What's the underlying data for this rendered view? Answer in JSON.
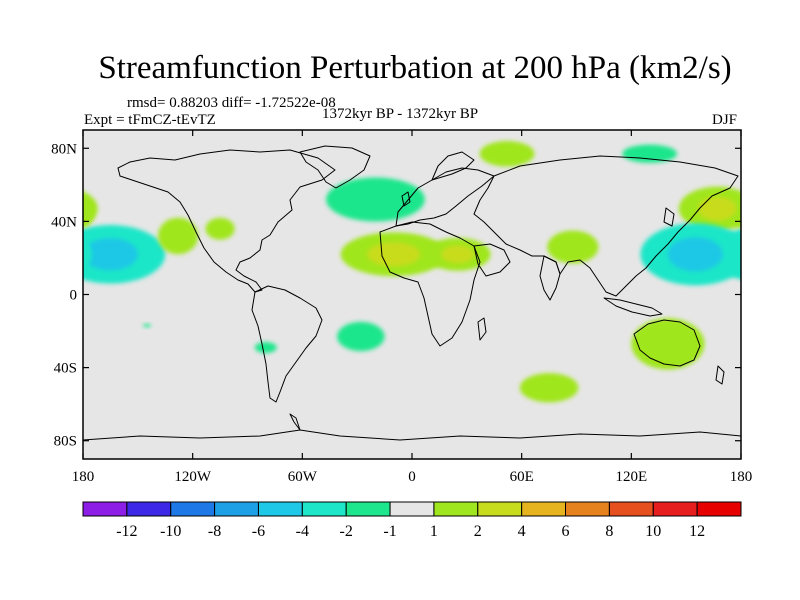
{
  "chart_data": {
    "type": "heatmap",
    "title": "Streamfunction Perturbation at 200 hPa (km2/s)",
    "stats_label": "rmsd= 0.88203 diff= -1.72522e-08",
    "experiment_label": "Expt = tFmCZ-tEvTZ",
    "period_label": "1372kyr BP - 1372kyr BP",
    "season_label": "DJF",
    "x_axis": {
      "range": [
        -180,
        180
      ],
      "ticks": [
        -180,
        -120,
        -60,
        0,
        60,
        120,
        180
      ],
      "tick_labels": [
        "180",
        "120W",
        "60W",
        "0",
        "60E",
        "120E",
        "180"
      ]
    },
    "y_axis": {
      "range": [
        -90,
        90
      ],
      "ticks": [
        80,
        40,
        0,
        -40,
        -80
      ],
      "tick_labels": [
        "80N",
        "40N",
        "0",
        "40S",
        "80S"
      ]
    },
    "colorbar": {
      "levels": [
        -12,
        -10,
        -8,
        -6,
        -4,
        -2,
        -1,
        1,
        2,
        4,
        6,
        8,
        10,
        12
      ],
      "labels": [
        "-12",
        "-10",
        "-8",
        "-6",
        "-4",
        "-2",
        "-1",
        "1",
        "2",
        "4",
        "6",
        "8",
        "10",
        "12"
      ],
      "colors": [
        "#8c1ee6",
        "#3c28e6",
        "#1e78e6",
        "#1ea0e6",
        "#1ec8e6",
        "#1ee6c8",
        "#1ee68c",
        "#e6e6e6",
        "#a0e61e",
        "#c8dc1e",
        "#e6b41e",
        "#e6821e",
        "#e6501e",
        "#e61e1e",
        "#e60000"
      ]
    },
    "anomalies": [
      {
        "lon": -165,
        "lat": 22,
        "rx": 30,
        "ry": 16,
        "value": -3,
        "core": -4.5
      },
      {
        "lon": -180,
        "lat": 45,
        "rx": 6,
        "ry": 8,
        "value": 1.5
      },
      {
        "lon": -128,
        "lat": 32,
        "rx": 11,
        "ry": 10,
        "value": 1.5
      },
      {
        "lon": -105,
        "lat": 36,
        "rx": 8,
        "ry": 6,
        "value": 1.5
      },
      {
        "lon": -20,
        "lat": 52,
        "rx": 27,
        "ry": 12,
        "value": -1.5
      },
      {
        "lon": 52,
        "lat": 77,
        "rx": 15,
        "ry": 7,
        "value": 1.5
      },
      {
        "lon": 130,
        "lat": 77,
        "rx": 15,
        "ry": 5,
        "value": -1.5
      },
      {
        "lon": 167,
        "lat": 47,
        "rx": 21,
        "ry": 12,
        "value": 1.5,
        "core": 3
      },
      {
        "lon": 155,
        "lat": 22,
        "rx": 30,
        "ry": 17,
        "value": -3,
        "core": -4.5
      },
      {
        "lon": -10,
        "lat": 22,
        "rx": 29,
        "ry": 12,
        "value": 1.5,
        "core": 3
      },
      {
        "lon": 25,
        "lat": 22,
        "rx": 18,
        "ry": 9,
        "value": 1.5,
        "core": 3
      },
      {
        "lon": 88,
        "lat": 26,
        "rx": 14,
        "ry": 9,
        "value": 1.5
      },
      {
        "lon": -28,
        "lat": -23,
        "rx": 13,
        "ry": 8,
        "value": -1.5
      },
      {
        "lon": -80,
        "lat": -29,
        "rx": 6,
        "ry": 3,
        "value": -1.5
      },
      {
        "lon": 140,
        "lat": -27,
        "rx": 20,
        "ry": 14,
        "value": 1.5
      },
      {
        "lon": 75,
        "lat": -51,
        "rx": 16,
        "ry": 8,
        "value": 1.5
      },
      {
        "lon": -145,
        "lat": -17,
        "rx": 2,
        "ry": 1,
        "value": -1.5
      }
    ]
  }
}
